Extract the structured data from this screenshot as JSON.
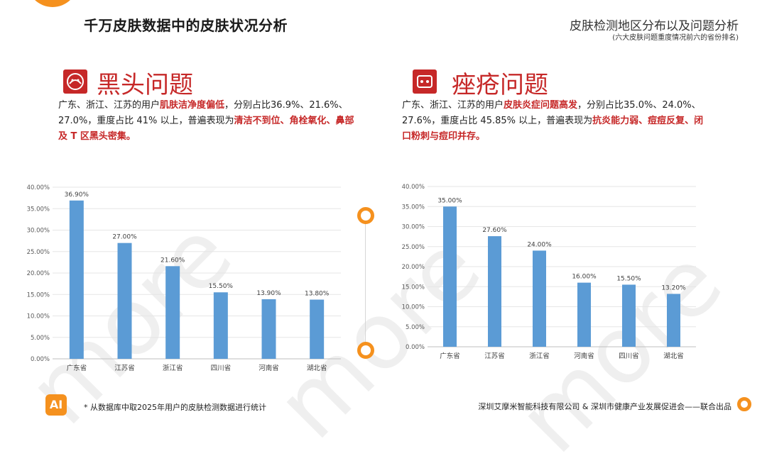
{
  "header": {
    "title": "千万皮肤数据中的皮肤状况分析",
    "right_title": "皮肤检测地区分布以及问题分析",
    "right_subtitle": "(六大皮肤问题重度情况前六的省份排名)"
  },
  "watermark": "more",
  "colors": {
    "accent": "#f5911e",
    "red": "#c62828",
    "bar": "#5b9bd5"
  },
  "left_section": {
    "icon": "blackhead-icon",
    "title": "黑头问题",
    "desc": [
      {
        "t": "广东、浙江、江苏的用户",
        "hl": false
      },
      {
        "t": "肌肤洁净度偏低",
        "hl": true
      },
      {
        "t": "，分别占比36.9%、21.6%、27.0%，重度占比 41% 以上，普遍表现为",
        "hl": false
      },
      {
        "t": "清洁不到位、角栓氧化、鼻部及 T 区黑头密集。",
        "hl": true
      }
    ]
  },
  "right_section": {
    "icon": "acne-icon",
    "title": "痤疮问题",
    "desc": [
      {
        "t": "广东、浙江、江苏的用户",
        "hl": false
      },
      {
        "t": "皮肤炎症问题高发",
        "hl": true
      },
      {
        "t": "，分别占比35.0%、24.0%、27.6%，重度占比 45.85% 以上，普遍表现为",
        "hl": false
      },
      {
        "t": "抗炎能力弱、痘痘反复、闭口粉刺与痘印并存。",
        "hl": true
      }
    ]
  },
  "chart_data": [
    {
      "type": "bar",
      "categories": [
        "广东省",
        "江苏省",
        "浙江省",
        "四川省",
        "河南省",
        "湖北省"
      ],
      "values": [
        36.9,
        27.0,
        21.6,
        15.5,
        13.9,
        13.8
      ],
      "data_labels": [
        "36.90%",
        "27.00%",
        "21.60%",
        "15.50%",
        "13.90%",
        "13.80%"
      ],
      "yticks": [
        "0.00%",
        "5.00%",
        "10.00%",
        "15.00%",
        "20.00%",
        "25.00%",
        "30.00%",
        "35.00%",
        "40.00%"
      ],
      "ylim": [
        0,
        40
      ],
      "grid": true
    },
    {
      "type": "bar",
      "categories": [
        "广东省",
        "江苏省",
        "浙江省",
        "河南省",
        "四川省",
        "湖北省"
      ],
      "values": [
        35.0,
        27.6,
        24.0,
        16.0,
        15.5,
        13.2
      ],
      "data_labels": [
        "35.00%",
        "27.60%",
        "24.00%",
        "16.00%",
        "15.50%",
        "13.20%"
      ],
      "yticks": [
        "0.00%",
        "5.00%",
        "10.00%",
        "15.00%",
        "20.00%",
        "25.00%",
        "30.00%",
        "35.00%",
        "40.00%"
      ],
      "ylim": [
        0,
        40
      ],
      "grid": true
    }
  ],
  "footer": {
    "logo": "AI",
    "note": "* 从数据库中取2025年用户的皮肤检测数据进行统计",
    "credit": "深圳艾摩米智能科技有限公司 & 深圳市健康产业发展促进会——联合出品"
  }
}
